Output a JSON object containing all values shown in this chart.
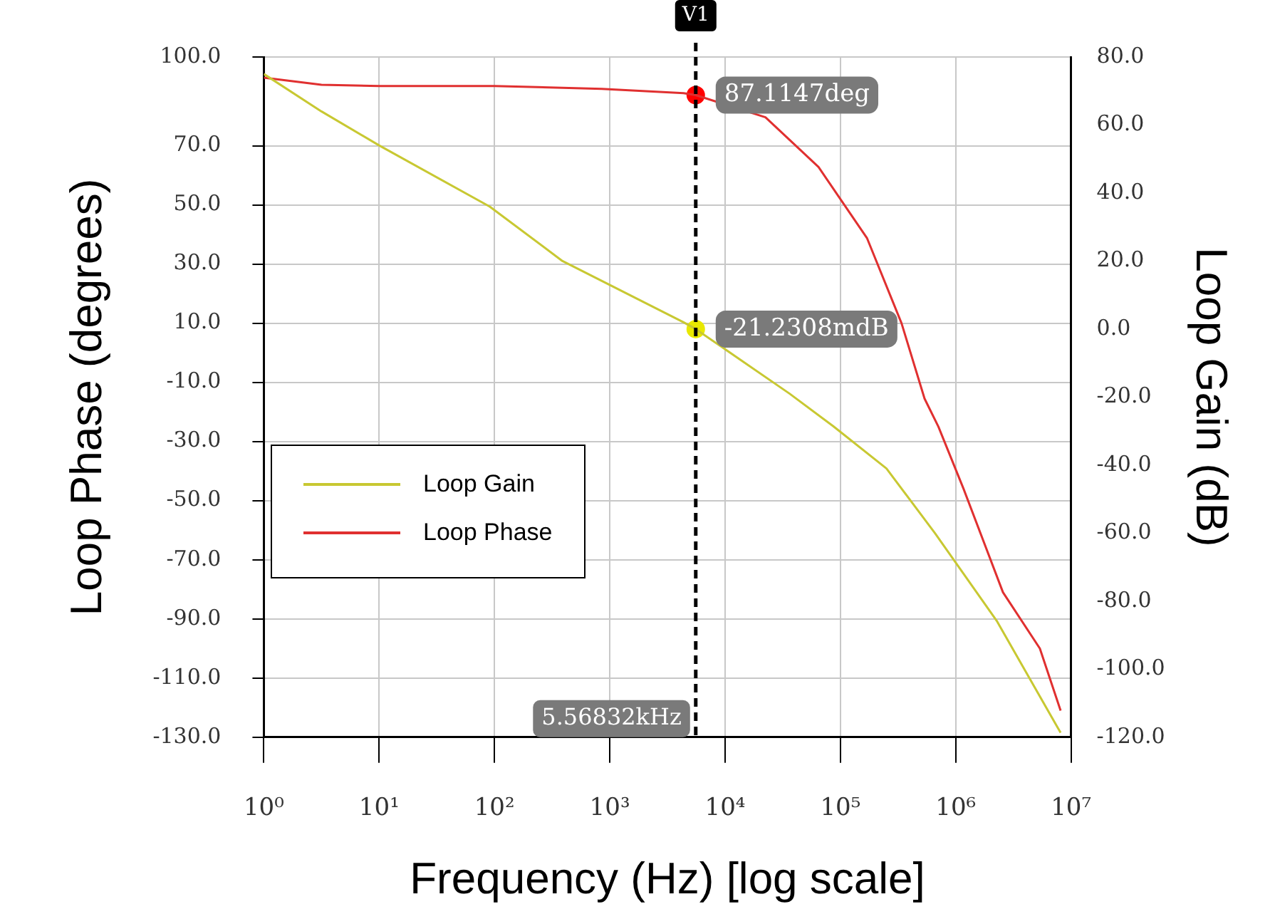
{
  "chart_data": {
    "type": "line",
    "xlabel": "Frequency (Hz) [log scale]",
    "ylabel": "Loop Phase (degrees)",
    "y2label": "Loop Gain (dB)",
    "log": "x",
    "xlim": [
      1,
      10000000
    ],
    "xticks": [
      {
        "value": 1,
        "label": "10⁰"
      },
      {
        "value": 10,
        "label": "10¹"
      },
      {
        "value": 100,
        "label": "10²"
      },
      {
        "value": 1000,
        "label": "10³"
      },
      {
        "value": 10000,
        "label": "10⁴"
      },
      {
        "value": 100000,
        "label": "10⁵"
      },
      {
        "value": 1000000,
        "label": "10⁶"
      },
      {
        "value": 10000000,
        "label": "10⁷"
      }
    ],
    "ylim": [
      -130,
      100
    ],
    "yticks": [
      {
        "value": -130,
        "label": "-130.0"
      },
      {
        "value": -110,
        "label": "-110.0"
      },
      {
        "value": -90,
        "label": "-90.0"
      },
      {
        "value": -70,
        "label": "-70.0"
      },
      {
        "value": -50,
        "label": "-50.0"
      },
      {
        "value": -30,
        "label": "-30.0"
      },
      {
        "value": -10,
        "label": "-10.0"
      },
      {
        "value": 10,
        "label": "10.0"
      },
      {
        "value": 30,
        "label": "30.0"
      },
      {
        "value": 50,
        "label": "50.0"
      },
      {
        "value": 70,
        "label": "70.0"
      },
      {
        "value": 100,
        "label": "100.0"
      }
    ],
    "y2lim": [
      -120,
      80
    ],
    "y2ticks": [
      {
        "value": -120,
        "label": "-120.0"
      },
      {
        "value": -100,
        "label": "-100.0"
      },
      {
        "value": -80,
        "label": "-80.0"
      },
      {
        "value": -60,
        "label": "-60.0"
      },
      {
        "value": -40,
        "label": "-40.0"
      },
      {
        "value": -20,
        "label": "-20.0"
      },
      {
        "value": 0,
        "label": "0.0"
      },
      {
        "value": 20,
        "label": "20.0"
      },
      {
        "value": 40,
        "label": "40.0"
      },
      {
        "value": 60,
        "label": "60.0"
      },
      {
        "value": 80,
        "label": "80.0"
      }
    ],
    "grid": true,
    "legend": "left",
    "series": [
      {
        "name": "Loop Gain",
        "color": "#c8c832",
        "axis": "y2",
        "x": [
          1,
          3.16,
          10,
          91,
          389,
          4365,
          5568.32,
          36300,
          87100,
          251000,
          661000,
          2290000,
          8130000
        ],
        "values": [
          75,
          64,
          54,
          36,
          20,
          2,
          0,
          -19,
          -28.6,
          -41,
          -60,
          -86,
          -118.7
        ]
      },
      {
        "name": "Loop Phase",
        "color": "#e03030",
        "x": [
          1,
          3.16,
          10,
          100,
          851,
          4365,
          5568.32,
          22400,
          64600,
          170000,
          339000,
          537000,
          708000,
          1170000,
          2570000,
          5370000,
          8130000
        ],
        "values": [
          93,
          90.6,
          90.2,
          90.2,
          89.2,
          87.8,
          87.1147,
          79.6,
          62.8,
          38.8,
          10,
          -15.5,
          -25,
          -46,
          -81,
          -100,
          -121
        ]
      },
      {
        "type": "scatter",
        "color": "#ff0000",
        "x": [
          5568.32
        ],
        "values": [
          87.1147
        ],
        "value_labels": [
          "87.1147deg"
        ]
      },
      {
        "type": "scatter",
        "color": "#e8e800",
        "axis": "y2",
        "x": [
          5568.32
        ],
        "values": [
          0
        ]
      }
    ],
    "ref_lines": [
      {
        "axis": "x",
        "value": 5568.32,
        "label": "V1",
        "color": "#000000",
        "line_style": "dashed"
      }
    ],
    "annotations": [
      {
        "text": "5.56832kHz",
        "x": 5568.32,
        "y": -130
      },
      "-21.2308mdB"
    ]
  }
}
